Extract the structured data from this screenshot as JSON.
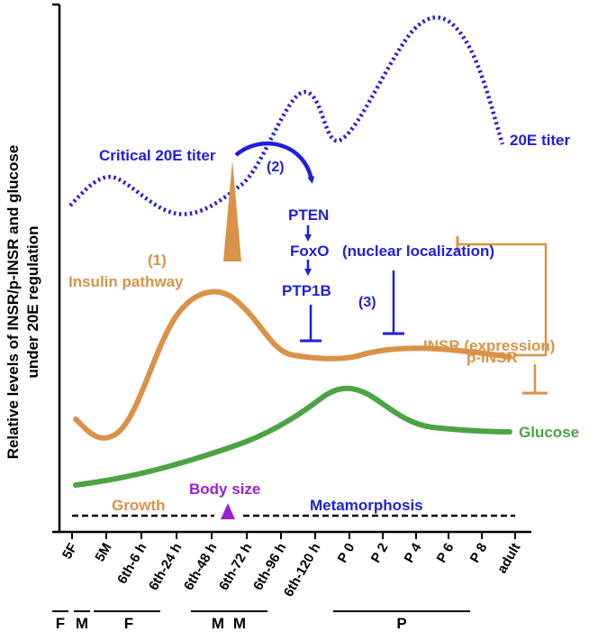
{
  "y_axis_label": [
    "Relative levels of INSR/p-INSR and glucose",
    "under 20E regulation"
  ],
  "x_ticks": [
    "5F",
    "5M",
    "6th-6 h",
    "6th-24 h",
    "6th-48 h",
    "6th-72 h",
    "6th-96 h",
    "6th-120 h",
    "P 0",
    "P 2",
    "P 4",
    "P 6",
    "P 8",
    "adult"
  ],
  "stage_labels": [
    "F",
    "M",
    "F",
    "M",
    "M",
    "P"
  ],
  "curves": {
    "titer_label": "20E titer",
    "pinsr_label": "p-INSR",
    "glucose_label": "Glucose"
  },
  "annotations": {
    "critical_titer": "Critical 20E titer",
    "step2": "(2)",
    "step1": "(1)",
    "insulin_pathway": "Insulin pathway",
    "pten": "PTEN",
    "foxo": "FoxO",
    "nuclear_localization": "(nuclear localization)",
    "ptp1b": "PTP1B",
    "step3": "(3)",
    "insr_expression": "INSR (expression)",
    "body_size": "Body size",
    "growth": "Growth",
    "metamorphosis": "Metamorphosis"
  },
  "colors": {
    "blue": "#1f1fdc",
    "orange": "#d99248",
    "green": "#4ba444",
    "purple": "#9a1fd6",
    "black": "#000000"
  }
}
